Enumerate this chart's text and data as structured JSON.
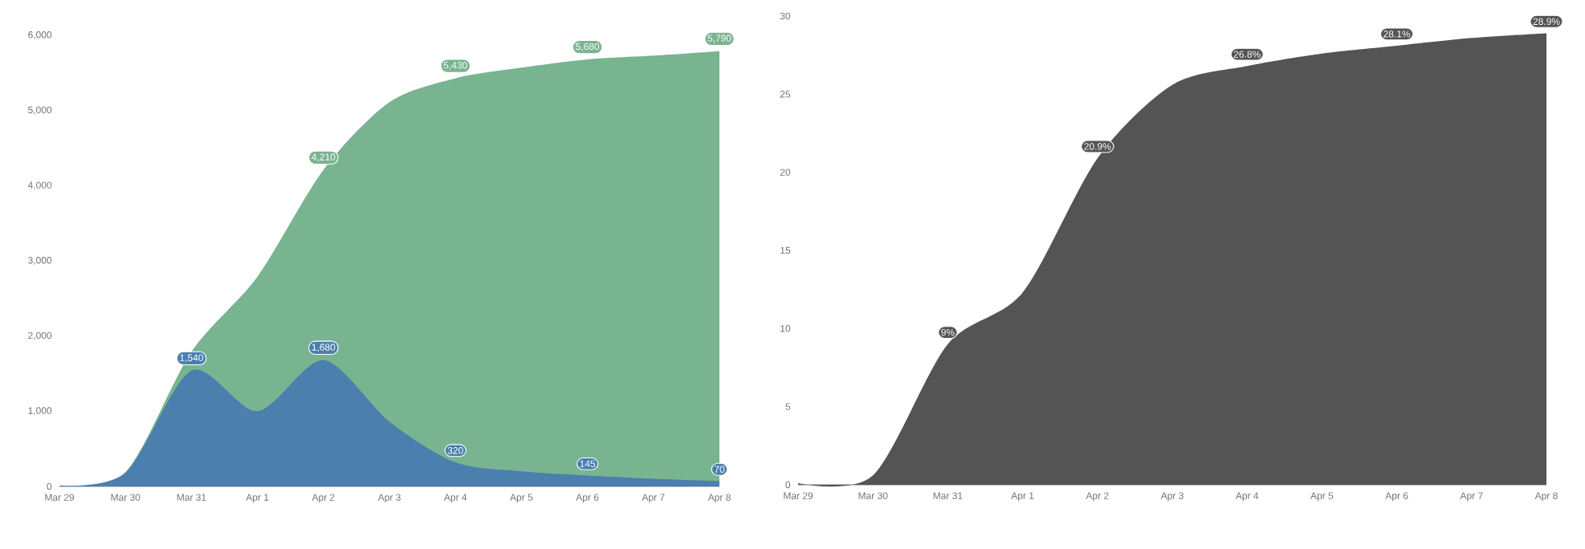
{
  "chart_data": [
    {
      "type": "area",
      "categories": [
        "Mar 29",
        "Mar 30",
        "Mar 31",
        "Apr 1",
        "Apr 2",
        "Apr 3",
        "Apr 4",
        "Apr 5",
        "Apr 6",
        "Apr 7",
        "Apr 8"
      ],
      "ylim": [
        0,
        6000
      ],
      "yticks": [
        0,
        {
          "value": 1000,
          "label": "1,000"
        },
        {
          "value": 2000,
          "label": "2,000"
        },
        {
          "value": 3000,
          "label": "3,000"
        },
        {
          "value": 4000,
          "label": "4,000"
        },
        {
          "value": 5000,
          "label": "5,000"
        },
        {
          "value": 6000,
          "label": "6,000"
        }
      ],
      "series": [
        {
          "color": "#79b491",
          "values": [
            10,
            190,
            1790,
            2790,
            4210,
            5110,
            5430,
            5570,
            5680,
            5730,
            5790
          ],
          "value_labels": [
            null,
            null,
            null,
            null,
            "4,210",
            null,
            "5,430",
            null,
            "5,680",
            null,
            "5,790"
          ]
        },
        {
          "color": "#4a7fae",
          "values": [
            10,
            180,
            1540,
            1000,
            1680,
            860,
            320,
            200,
            145,
            100,
            70
          ],
          "value_labels": [
            null,
            null,
            "1,540",
            null,
            "1,680",
            null,
            "320",
            null,
            "145",
            null,
            "70"
          ]
        }
      ]
    },
    {
      "type": "area",
      "categories": [
        "Mar 29",
        "Mar 30",
        "Mar 31",
        "Apr 1",
        "Apr 2",
        "Apr 3",
        "Apr 4",
        "Apr 5",
        "Apr 6",
        "Apr 7",
        "Apr 8"
      ],
      "ylim": [
        0,
        30
      ],
      "yticks": [
        0,
        5,
        10,
        15,
        20,
        25,
        30
      ],
      "series": [
        {
          "color": "#545454",
          "values": [
            0.1,
            0.6,
            9,
            12.3,
            20.9,
            25.6,
            26.8,
            27.6,
            28.1,
            28.6,
            28.9
          ],
          "value_labels": [
            null,
            null,
            "9%",
            null,
            "20.9%",
            null,
            "26.8%",
            null,
            "28.1%",
            null,
            "28.9%"
          ]
        }
      ]
    }
  ]
}
